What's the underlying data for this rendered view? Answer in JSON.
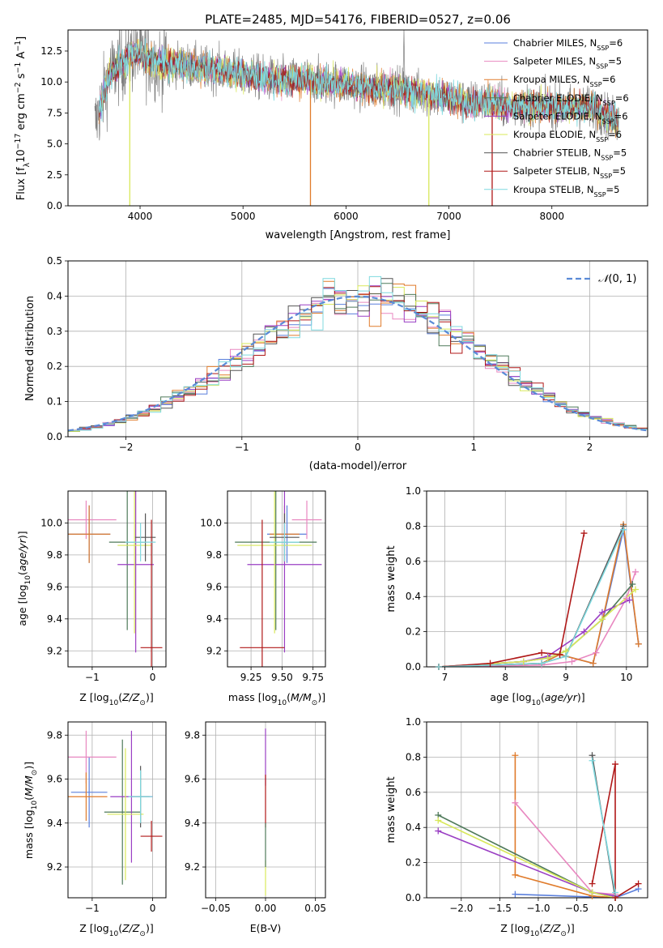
{
  "title": "PLATE=2485, MJD=54176, FIBERID=0527, z=0.06",
  "colors": {
    "Chabrier MILES": "#5a7fdc",
    "Salpeter MILES": "#e887c0",
    "Kroupa MILES": "#e07b2b",
    "Chabrier ELODIE": "#4f7a5a",
    "Salpeter ELODIE": "#9a3fc4",
    "Kroupa ELODIE": "#d8e85a",
    "Chabrier STELIB": "#555555",
    "Salpeter STELIB": "#b01818",
    "Kroupa STELIB": "#7fd9df",
    "data": "#7f7f7f",
    "normal": "#5a8ad6"
  },
  "chart_data": [
    {
      "id": "spectrum",
      "type": "line",
      "xlabel": "wavelength [Angstrom, rest frame]",
      "ylabel": "Flux [f_λ10^-17 erg cm^-2 s^-1 A^-1]",
      "xlim": [
        3300,
        8930
      ],
      "ylim": [
        0,
        14.2
      ],
      "xticks": [
        4000,
        5000,
        6000,
        7000,
        8000
      ],
      "yticks": [
        0.0,
        2.5,
        5.0,
        7.5,
        10.0,
        12.5
      ],
      "legend_position": "top-right",
      "legend": [
        "Chabrier MILES, N_SSP=6",
        "Salpeter MILES, N_SSP=5",
        "Kroupa MILES, N_SSP=6",
        "Chabrier ELODIE, N_SSP=6",
        "Salpeter ELODIE, N_SSP=6",
        "Kroupa ELODIE, N_SSP=6",
        "Chabrier STELIB, N_SSP=5",
        "Salpeter STELIB, N_SSP=5",
        "Kroupa STELIB, N_SSP=5"
      ],
      "continuum": [
        [
          3560,
          6.5
        ],
        [
          3620,
          8.2
        ],
        [
          3700,
          10.6
        ],
        [
          3800,
          11.4
        ],
        [
          3950,
          12.3
        ],
        [
          4050,
          12.0
        ],
        [
          4200,
          11.5
        ],
        [
          4400,
          11.4
        ],
        [
          4600,
          11.1
        ],
        [
          4800,
          11.0
        ],
        [
          5000,
          10.6
        ],
        [
          5200,
          10.3
        ],
        [
          5400,
          10.1
        ],
        [
          5600,
          10.2
        ],
        [
          5800,
          10.0
        ],
        [
          6000,
          9.8
        ],
        [
          6200,
          9.5
        ],
        [
          6400,
          9.6
        ],
        [
          6600,
          9.3
        ],
        [
          6800,
          9.0
        ],
        [
          7000,
          8.7
        ],
        [
          7200,
          8.3
        ],
        [
          7400,
          8.4
        ],
        [
          7600,
          8.0
        ],
        [
          7800,
          8.1
        ],
        [
          8000,
          8.0
        ],
        [
          8200,
          8.0
        ],
        [
          8400,
          7.9
        ],
        [
          8650,
          6.8
        ]
      ],
      "dips": [
        [
          3900,
          0,
          "Kroupa ELODIE"
        ],
        [
          5655,
          0,
          "Kroupa MILES"
        ],
        [
          6805,
          0,
          "Kroupa ELODIE"
        ],
        [
          7420,
          0,
          "Salpeter STELIB"
        ]
      ],
      "emission_peak": [
        6563,
        14.2
      ]
    },
    {
      "id": "residuals",
      "type": "bar",
      "xlabel": "(data-model)/error",
      "ylabel": "Normed distribution",
      "xlim": [
        -2.5,
        2.5
      ],
      "ylim": [
        0,
        0.5
      ],
      "xticks": [
        -2,
        -1,
        0,
        1,
        2
      ],
      "yticks": [
        0.0,
        0.1,
        0.2,
        0.3,
        0.4,
        0.5
      ],
      "legend": [
        "N(0,1)"
      ],
      "bin_width": 0.1
    },
    {
      "id": "age_vs_Z",
      "type": "scatter",
      "xlabel": "Z [log10(Z/Z☉)]",
      "ylabel": "age [log10(age/yr)]",
      "xlim": [
        -1.4,
        0.22
      ],
      "ylim": [
        9.1,
        10.2
      ],
      "xticks": [
        -1,
        0
      ],
      "yticks": [
        9.2,
        9.4,
        9.6,
        9.8,
        10.0
      ],
      "points": [
        {
          "series": "Chabrier MILES",
          "x": -1.05,
          "y": 9.93,
          "xerr": 0.35,
          "yerr": 0.18
        },
        {
          "series": "Salpeter MILES",
          "x": -1.1,
          "y": 10.02,
          "xerr": 0.5,
          "yerr": 0.12
        },
        {
          "series": "Kroupa MILES",
          "x": -1.05,
          "y": 9.93,
          "xerr": 0.35,
          "yerr": 0.18
        },
        {
          "series": "Chabrier ELODIE",
          "x": -0.42,
          "y": 9.88,
          "xerr": 0.3,
          "yerr": 0.55
        },
        {
          "series": "Salpeter ELODIE",
          "x": -0.28,
          "y": 9.74,
          "xerr": 0.3,
          "yerr": 0.55
        },
        {
          "series": "Kroupa ELODIE",
          "x": -0.3,
          "y": 9.86,
          "xerr": 0.28,
          "yerr": 0.55
        },
        {
          "series": "Chabrier STELIB",
          "x": -0.12,
          "y": 9.91,
          "xerr": 0.17,
          "yerr": 0.15
        },
        {
          "series": "Salpeter STELIB",
          "x": -0.02,
          "y": 9.22,
          "xerr": 0.18,
          "yerr": 0.8
        },
        {
          "series": "Kroupa STELIB",
          "x": -0.2,
          "y": 9.88,
          "xerr": 0.25,
          "yerr": 0.12
        }
      ]
    },
    {
      "id": "age_vs_mass",
      "type": "scatter",
      "xlabel": "mass [log10(M/M☉)]",
      "ylabel": "",
      "xlim": [
        9.06,
        9.85
      ],
      "ylim": [
        9.1,
        10.2
      ],
      "xticks": [
        9.25,
        9.5,
        9.75
      ],
      "yticks": [
        9.2,
        9.4,
        9.6,
        9.8,
        10.0
      ],
      "points": [
        {
          "series": "Chabrier MILES",
          "x": 9.54,
          "y": 9.93,
          "xerr": 0.16,
          "yerr": 0.18
        },
        {
          "series": "Salpeter MILES",
          "x": 9.7,
          "y": 10.02,
          "xerr": 0.12,
          "yerr": 0.12
        },
        {
          "series": "Kroupa MILES",
          "x": 9.52,
          "y": 9.93,
          "xerr": 0.12,
          "yerr": 0.18
        },
        {
          "series": "Chabrier ELODIE",
          "x": 9.45,
          "y": 9.88,
          "xerr": 0.33,
          "yerr": 0.55
        },
        {
          "series": "Salpeter ELODIE",
          "x": 9.52,
          "y": 9.74,
          "xerr": 0.3,
          "yerr": 0.55
        },
        {
          "series": "Kroupa ELODIE",
          "x": 9.44,
          "y": 9.86,
          "xerr": 0.3,
          "yerr": 0.55
        },
        {
          "series": "Chabrier STELIB",
          "x": 9.52,
          "y": 9.91,
          "xerr": 0.12,
          "yerr": 0.15
        },
        {
          "series": "Salpeter STELIB",
          "x": 9.34,
          "y": 9.22,
          "xerr": 0.18,
          "yerr": 0.8
        },
        {
          "series": "Kroupa STELIB",
          "x": 9.52,
          "y": 9.88,
          "xerr": 0.12,
          "yerr": 0.12
        }
      ]
    },
    {
      "id": "weight_vs_age",
      "type": "line",
      "xlabel": "age [log10(age/yr)]",
      "ylabel": "mass weight",
      "xlim": [
        6.7,
        10.35
      ],
      "ylim": [
        0,
        1.0
      ],
      "xticks": [
        7,
        8,
        9,
        10
      ],
      "yticks": [
        0.0,
        0.2,
        0.4,
        0.6,
        0.8,
        1.0
      ],
      "series": [
        {
          "name": "Chabrier MILES",
          "points": [
            [
              6.9,
              0.0
            ],
            [
              8.6,
              0.02
            ],
            [
              8.9,
              0.07
            ],
            [
              9.45,
              0.02
            ],
            [
              9.95,
              0.78
            ],
            [
              10.2,
              0.13
            ]
          ]
        },
        {
          "name": "Salpeter MILES",
          "points": [
            [
              6.9,
              0.0
            ],
            [
              8.6,
              0.01
            ],
            [
              9.1,
              0.03
            ],
            [
              9.5,
              0.08
            ],
            [
              10.0,
              0.39
            ],
            [
              10.15,
              0.54
            ]
          ]
        },
        {
          "name": "Kroupa MILES",
          "points": [
            [
              6.9,
              0.0
            ],
            [
              8.6,
              0.02
            ],
            [
              8.9,
              0.07
            ],
            [
              9.45,
              0.02
            ],
            [
              9.95,
              0.81
            ],
            [
              10.2,
              0.13
            ]
          ]
        },
        {
          "name": "Chabrier ELODIE",
          "points": [
            [
              6.9,
              0.0
            ],
            [
              8.3,
              0.03
            ],
            [
              8.7,
              0.05
            ],
            [
              9.0,
              0.09
            ],
            [
              9.6,
              0.27
            ],
            [
              10.1,
              0.47
            ]
          ]
        },
        {
          "name": "Salpeter ELODIE",
          "points": [
            [
              6.9,
              0.0
            ],
            [
              8.3,
              0.03
            ],
            [
              8.7,
              0.06
            ],
            [
              9.3,
              0.2
            ],
            [
              9.6,
              0.31
            ],
            [
              10.05,
              0.38
            ]
          ]
        },
        {
          "name": "Kroupa ELODIE",
          "points": [
            [
              6.9,
              0.0
            ],
            [
              8.3,
              0.03
            ],
            [
              8.7,
              0.05
            ],
            [
              9.0,
              0.09
            ],
            [
              9.6,
              0.27
            ],
            [
              10.15,
              0.44
            ]
          ]
        },
        {
          "name": "Chabrier STELIB",
          "points": [
            [
              6.9,
              0.0
            ],
            [
              8.6,
              0.02
            ],
            [
              9.0,
              0.06
            ],
            [
              9.95,
              0.8
            ]
          ]
        },
        {
          "name": "Salpeter STELIB",
          "points": [
            [
              6.9,
              0.0
            ],
            [
              7.75,
              0.02
            ],
            [
              8.6,
              0.08
            ],
            [
              8.9,
              0.07
            ],
            [
              9.3,
              0.76
            ]
          ]
        },
        {
          "name": "Kroupa STELIB",
          "points": [
            [
              6.9,
              0.0
            ],
            [
              8.6,
              0.02
            ],
            [
              9.0,
              0.06
            ],
            [
              9.95,
              0.78
            ]
          ]
        }
      ]
    },
    {
      "id": "mass_vs_Z",
      "type": "scatter",
      "xlabel": "Z [log10(Z/Z☉)]",
      "ylabel": "mass [log10(M/M☉)]",
      "xlim": [
        -1.4,
        0.22
      ],
      "ylim": [
        9.06,
        9.86
      ],
      "xticks": [
        -1,
        0
      ],
      "yticks": [
        9.2,
        9.4,
        9.6,
        9.8
      ],
      "points": [
        {
          "series": "Chabrier MILES",
          "x": -1.05,
          "y": 9.54,
          "xerr": 0.3,
          "yerr": 0.16
        },
        {
          "series": "Salpeter MILES",
          "x": -1.1,
          "y": 9.7,
          "xerr": 0.5,
          "yerr": 0.12
        },
        {
          "series": "Kroupa MILES",
          "x": -1.1,
          "y": 9.52,
          "xerr": 0.35,
          "yerr": 0.11
        },
        {
          "series": "Chabrier ELODIE",
          "x": -0.5,
          "y": 9.45,
          "xerr": 0.3,
          "yerr": 0.33
        },
        {
          "series": "Salpeter ELODIE",
          "x": -0.35,
          "y": 9.52,
          "xerr": 0.35,
          "yerr": 0.3
        },
        {
          "series": "Kroupa ELODIE",
          "x": -0.45,
          "y": 9.44,
          "xerr": 0.3,
          "yerr": 0.3
        },
        {
          "series": "Chabrier STELIB",
          "x": -0.2,
          "y": 9.52,
          "xerr": 0.15,
          "yerr": 0.14
        },
        {
          "series": "Salpeter STELIB",
          "x": -0.02,
          "y": 9.34,
          "xerr": 0.18,
          "yerr": 0.07
        },
        {
          "series": "Kroupa STELIB",
          "x": -0.2,
          "y": 9.52,
          "xerr": 0.2,
          "yerr": 0.12
        }
      ]
    },
    {
      "id": "mass_vs_ebv",
      "type": "scatter",
      "xlabel": "E(B-V)",
      "ylabel": "",
      "xlim": [
        -0.06,
        0.06
      ],
      "ylim": [
        9.06,
        9.86
      ],
      "xticks": [
        -0.05,
        0.0,
        0.05
      ],
      "yticks": [
        9.2,
        9.4,
        9.6,
        9.8
      ],
      "points": [
        {
          "series": "Salpeter ELODIE",
          "x": 0.0,
          "y": 9.7,
          "yerr": 0.13
        },
        {
          "series": "Kroupa ELODIE",
          "x": 0.0,
          "y": 9.15,
          "yerr": 0.08
        },
        {
          "series": "Salpeter STELIB",
          "x": 0.0,
          "y": 9.5,
          "yerr": 0.12
        },
        {
          "series": "Chabrier ELODIE",
          "x": 0.0,
          "y": 9.3,
          "yerr": 0.1
        }
      ]
    },
    {
      "id": "weight_vs_Z",
      "type": "line",
      "xlabel": "Z [log10(Z/Z☉)]",
      "ylabel": "mass weight",
      "xlim": [
        -2.45,
        0.42
      ],
      "ylim": [
        0,
        1.0
      ],
      "xticks": [
        -2.0,
        -1.5,
        -1.0,
        -0.5,
        0.0
      ],
      "yticks": [
        0.0,
        0.2,
        0.4,
        0.6,
        0.8,
        1.0
      ],
      "series": [
        {
          "name": "Chabrier MILES",
          "points": [
            [
              -1.3,
              0.02
            ],
            [
              0.0,
              0.0
            ],
            [
              0.3,
              0.05
            ]
          ]
        },
        {
          "name": "Salpeter MILES",
          "points": [
            [
              -1.3,
              0.54
            ],
            [
              -0.3,
              0.03
            ],
            [
              0.0,
              0.02
            ]
          ]
        },
        {
          "name": "Kroupa MILES",
          "points": [
            [
              -1.3,
              0.81
            ],
            [
              -1.3,
              0.13
            ],
            [
              -0.3,
              0.01
            ],
            [
              0.0,
              0.0
            ]
          ]
        },
        {
          "name": "Chabrier ELODIE",
          "points": [
            [
              -2.3,
              0.47
            ],
            [
              -0.3,
              0.03
            ],
            [
              0.0,
              0.0
            ]
          ]
        },
        {
          "name": "Salpeter ELODIE",
          "points": [
            [
              -2.3,
              0.38
            ],
            [
              -0.3,
              0.03
            ],
            [
              0.0,
              0.01
            ]
          ]
        },
        {
          "name": "Kroupa ELODIE",
          "points": [
            [
              -2.3,
              0.44
            ],
            [
              -0.3,
              0.03
            ],
            [
              0.0,
              0.0
            ]
          ]
        },
        {
          "name": "Chabrier STELIB",
          "points": [
            [
              -0.3,
              0.81
            ],
            [
              0.0,
              0.0
            ]
          ]
        },
        {
          "name": "Salpeter STELIB",
          "points": [
            [
              -0.3,
              0.08
            ],
            [
              0.0,
              0.76
            ],
            [
              0.0,
              0.0
            ],
            [
              0.3,
              0.08
            ]
          ]
        },
        {
          "name": "Kroupa STELIB",
          "points": [
            [
              -0.3,
              0.78
            ],
            [
              0.0,
              0.03
            ]
          ]
        }
      ]
    }
  ]
}
